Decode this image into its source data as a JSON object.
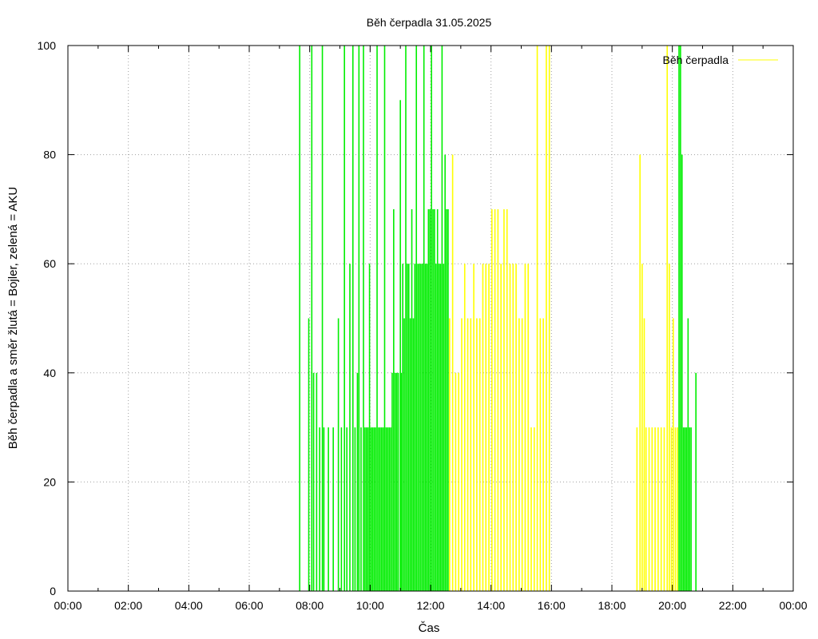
{
  "chart_data": {
    "type": "bar",
    "title": "Běh čerpadla 31.05.2025",
    "xlabel": "Čas",
    "ylabel": "Běh čerpadla a směr žlutá = Bojler, zelená = AKU",
    "legend": {
      "label": "Běh čerpadla",
      "color": "#ffff00",
      "position": "top-right"
    },
    "xlim": [
      0,
      24
    ],
    "ylim": [
      0,
      100
    ],
    "xticks": [
      {
        "h": 0,
        "label": "00:00"
      },
      {
        "h": 2,
        "label": "02:00"
      },
      {
        "h": 4,
        "label": "04:00"
      },
      {
        "h": 6,
        "label": "06:00"
      },
      {
        "h": 8,
        "label": "08:00"
      },
      {
        "h": 10,
        "label": "10:00"
      },
      {
        "h": 12,
        "label": "12:00"
      },
      {
        "h": 14,
        "label": "14:00"
      },
      {
        "h": 16,
        "label": "16:00"
      },
      {
        "h": 18,
        "label": "18:00"
      },
      {
        "h": 20,
        "label": "20:00"
      },
      {
        "h": 22,
        "label": "22:00"
      },
      {
        "h": 24,
        "label": "00:00"
      }
    ],
    "yticks": [
      {
        "v": 0,
        "label": "0"
      },
      {
        "v": 20,
        "label": "20"
      },
      {
        "v": 40,
        "label": "40"
      },
      {
        "v": 60,
        "label": "60"
      },
      {
        "v": 80,
        "label": "80"
      },
      {
        "v": 100,
        "label": "100"
      }
    ],
    "grid": true,
    "series": [
      {
        "color": "#00ee00",
        "points": [
          [
            7.67,
            100
          ],
          [
            7.97,
            50
          ],
          [
            8.07,
            100
          ],
          [
            8.13,
            40
          ],
          [
            8.23,
            40
          ],
          [
            8.33,
            30
          ],
          [
            8.42,
            100
          ],
          [
            8.47,
            30
          ],
          [
            8.62,
            30
          ],
          [
            8.78,
            30
          ],
          [
            8.95,
            50
          ],
          [
            9.05,
            30
          ],
          [
            9.15,
            100
          ],
          [
            9.23,
            30
          ],
          [
            9.33,
            60
          ],
          [
            9.43,
            100
          ],
          [
            9.5,
            30
          ],
          [
            9.58,
            40
          ],
          [
            9.63,
            100
          ],
          [
            9.7,
            30
          ],
          [
            9.78,
            100
          ],
          [
            9.83,
            30
          ],
          [
            9.88,
            30
          ],
          [
            9.93,
            30
          ],
          [
            9.98,
            60
          ],
          [
            10.03,
            30
          ],
          [
            10.08,
            30
          ],
          [
            10.13,
            30
          ],
          [
            10.18,
            30
          ],
          [
            10.23,
            100
          ],
          [
            10.28,
            30
          ],
          [
            10.33,
            30
          ],
          [
            10.38,
            30
          ],
          [
            10.43,
            30
          ],
          [
            10.48,
            100
          ],
          [
            10.53,
            30
          ],
          [
            10.58,
            30
          ],
          [
            10.63,
            30
          ],
          [
            10.68,
            30
          ],
          [
            10.73,
            40
          ],
          [
            10.78,
            70
          ],
          [
            10.83,
            40
          ],
          [
            10.88,
            40
          ],
          [
            10.93,
            40
          ],
          [
            11.0,
            90
          ],
          [
            11.03,
            40
          ],
          [
            11.08,
            60
          ],
          [
            11.13,
            50
          ],
          [
            11.18,
            100
          ],
          [
            11.23,
            60
          ],
          [
            11.28,
            60
          ],
          [
            11.33,
            50
          ],
          [
            11.38,
            70
          ],
          [
            11.43,
            50
          ],
          [
            11.48,
            60
          ],
          [
            11.53,
            100
          ],
          [
            11.58,
            60
          ],
          [
            11.63,
            60
          ],
          [
            11.68,
            60
          ],
          [
            11.73,
            60
          ],
          [
            11.78,
            100
          ],
          [
            11.83,
            60
          ],
          [
            11.88,
            60
          ],
          [
            11.93,
            70
          ],
          [
            11.98,
            70
          ],
          [
            12.03,
            100
          ],
          [
            12.08,
            70
          ],
          [
            12.13,
            70
          ],
          [
            12.18,
            60
          ],
          [
            12.23,
            70
          ],
          [
            12.28,
            60
          ],
          [
            12.33,
            60
          ],
          [
            12.38,
            100
          ],
          [
            12.43,
            60
          ],
          [
            12.48,
            80
          ],
          [
            12.53,
            70
          ],
          [
            12.58,
            70
          ],
          [
            20.22,
            100
          ],
          [
            20.27,
            100
          ],
          [
            20.32,
            80
          ],
          [
            20.37,
            30
          ],
          [
            20.42,
            30
          ],
          [
            20.47,
            30
          ],
          [
            20.52,
            50
          ],
          [
            20.57,
            30
          ],
          [
            20.62,
            30
          ],
          [
            20.78,
            40
          ]
        ]
      },
      {
        "color": "#ffff00",
        "points": [
          [
            12.63,
            50
          ],
          [
            12.73,
            80
          ],
          [
            12.83,
            40
          ],
          [
            12.93,
            40
          ],
          [
            13.03,
            50
          ],
          [
            13.13,
            60
          ],
          [
            13.23,
            50
          ],
          [
            13.33,
            50
          ],
          [
            13.43,
            60
          ],
          [
            13.53,
            50
          ],
          [
            13.63,
            50
          ],
          [
            13.73,
            60
          ],
          [
            13.83,
            60
          ],
          [
            13.93,
            60
          ],
          [
            14.03,
            70
          ],
          [
            14.13,
            70
          ],
          [
            14.23,
            70
          ],
          [
            14.33,
            60
          ],
          [
            14.43,
            70
          ],
          [
            14.53,
            70
          ],
          [
            14.63,
            60
          ],
          [
            14.73,
            60
          ],
          [
            14.83,
            60
          ],
          [
            14.93,
            50
          ],
          [
            15.03,
            50
          ],
          [
            15.13,
            60
          ],
          [
            15.23,
            60
          ],
          [
            15.33,
            30
          ],
          [
            15.43,
            30
          ],
          [
            15.53,
            100
          ],
          [
            15.63,
            50
          ],
          [
            15.73,
            50
          ],
          [
            15.83,
            100
          ],
          [
            15.93,
            100
          ],
          [
            18.83,
            30
          ],
          [
            18.93,
            80
          ],
          [
            19.0,
            60
          ],
          [
            19.07,
            50
          ],
          [
            19.13,
            30
          ],
          [
            19.23,
            30
          ],
          [
            19.33,
            30
          ],
          [
            19.43,
            30
          ],
          [
            19.53,
            30
          ],
          [
            19.63,
            30
          ],
          [
            19.73,
            30
          ],
          [
            19.83,
            100
          ],
          [
            19.9,
            60
          ],
          [
            19.97,
            30
          ],
          [
            20.03,
            50
          ],
          [
            20.1,
            30
          ],
          [
            20.17,
            30
          ]
        ]
      }
    ]
  }
}
